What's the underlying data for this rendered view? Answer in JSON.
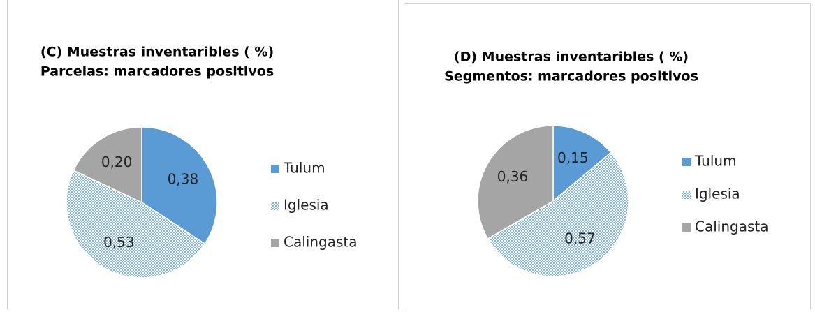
{
  "chart_data": [
    {
      "type": "pie",
      "title": "(C) Muestras inventaribles ( %)",
      "subtitle": "Parcelas: marcadores positivos",
      "categories": [
        "Tulum",
        "Iglesia",
        "Calingasta"
      ],
      "values": [
        0.38,
        0.53,
        0.2
      ],
      "value_labels": [
        "0,38",
        "0,53",
        "0,20"
      ],
      "colors": [
        "#5b9bd5",
        "#5b9bd5",
        "#a5a5a5"
      ],
      "fill_styles": [
        "solid",
        "dots",
        "solid"
      ],
      "legend": "right"
    },
    {
      "type": "pie",
      "title": "(D) Muestras inventaribles ( %)",
      "subtitle": "Segmentos: marcadores positivos",
      "categories": [
        "Tulum",
        "Iglesia",
        "Calingasta"
      ],
      "values": [
        0.15,
        0.57,
        0.36
      ],
      "value_labels": [
        "0,15",
        "0,57",
        "0,36"
      ],
      "colors": [
        "#5b9bd5",
        "#5b9bd5",
        "#a5a5a5"
      ],
      "fill_styles": [
        "solid",
        "dots",
        "solid"
      ],
      "legend": "right"
    }
  ]
}
